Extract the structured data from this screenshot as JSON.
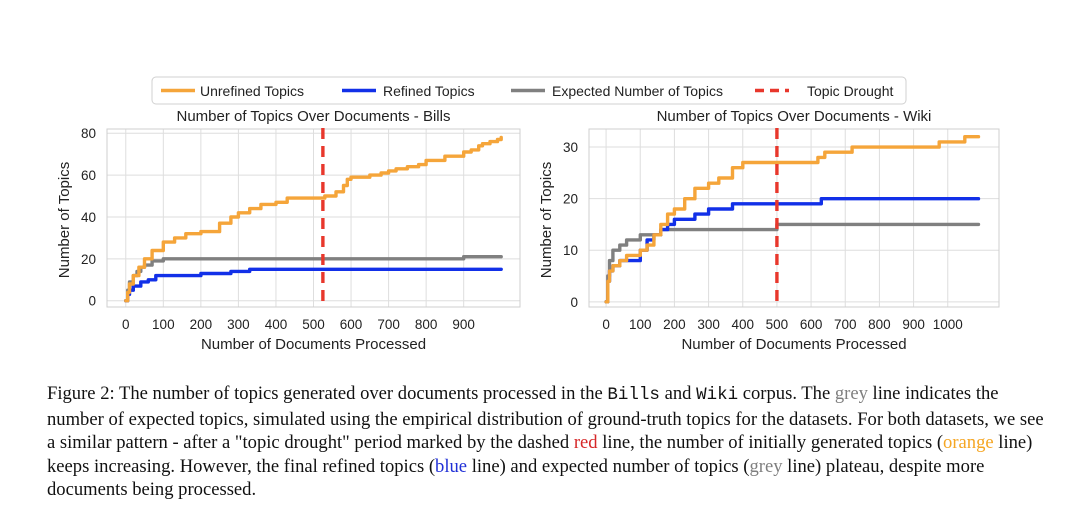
{
  "legend": {
    "items": [
      {
        "label": "Unrefined Topics",
        "color": "#f5a53a",
        "style": "solid"
      },
      {
        "label": "Refined Topics",
        "color": "#1230e8",
        "style": "solid"
      },
      {
        "label": "Expected Number of Topics",
        "color": "#808080",
        "style": "solid"
      },
      {
        "label": "Topic Drought",
        "color": "#e8372c",
        "style": "dashed"
      }
    ]
  },
  "chart_data": [
    {
      "type": "line",
      "title": "Number of Topics Over Documents - Bills",
      "xlabel": "Number of Documents Processed",
      "ylabel": "Number of Topics",
      "xlim": [
        -50,
        1050
      ],
      "ylim": [
        -3,
        82
      ],
      "xticks": [
        0,
        100,
        200,
        300,
        400,
        500,
        600,
        700,
        800,
        900
      ],
      "yticks": [
        0,
        20,
        40,
        60,
        80
      ],
      "grid": true,
      "vline": {
        "name": "Topic Drought",
        "x": 525
      },
      "series": [
        {
          "name": "Unrefined Topics",
          "x": [
            0,
            5,
            10,
            20,
            35,
            50,
            70,
            100,
            130,
            160,
            200,
            250,
            280,
            300,
            330,
            360,
            400,
            430,
            450,
            470,
            500,
            530,
            560,
            580,
            590,
            600,
            620,
            650,
            680,
            700,
            720,
            750,
            780,
            800,
            850,
            900,
            920,
            940,
            950,
            970,
            990,
            1000
          ],
          "values": [
            0,
            4,
            8,
            12,
            16,
            20,
            24,
            28,
            30,
            32,
            33,
            37,
            40,
            42,
            44,
            46,
            47,
            49,
            49,
            49,
            49,
            50,
            52,
            55,
            58,
            59,
            59,
            60,
            61,
            62,
            63,
            64,
            65,
            67,
            69,
            71,
            72,
            74,
            75,
            76,
            77,
            78
          ]
        },
        {
          "name": "Refined Topics",
          "x": [
            0,
            5,
            10,
            20,
            40,
            60,
            80,
            100,
            140,
            200,
            230,
            280,
            330,
            400,
            500,
            600,
            700,
            800,
            900,
            1000
          ],
          "values": [
            0,
            3,
            5,
            7,
            9,
            10,
            12,
            12,
            12,
            13,
            13,
            14,
            15,
            15,
            15,
            15,
            15,
            15,
            15,
            15
          ]
        },
        {
          "name": "Expected Number of Topics",
          "x": [
            0,
            5,
            10,
            20,
            30,
            40,
            50,
            70,
            100,
            150,
            200,
            300,
            400,
            500,
            600,
            700,
            800,
            900,
            1000
          ],
          "values": [
            0,
            5,
            9,
            12,
            14,
            16,
            17,
            19,
            20,
            20,
            20,
            20,
            20,
            20,
            20,
            20,
            20,
            21,
            21
          ]
        }
      ]
    },
    {
      "type": "line",
      "title": "Number of Topics Over Documents - Wiki",
      "xlabel": "Number of Documents Processed",
      "ylabel": "Number of Topics",
      "xlim": [
        -50,
        1150
      ],
      "ylim": [
        -1,
        33.5
      ],
      "xticks": [
        0,
        100,
        200,
        300,
        400,
        500,
        600,
        700,
        800,
        900,
        1000
      ],
      "yticks": [
        0,
        10,
        20,
        30
      ],
      "grid": true,
      "vline": {
        "name": "Topic Drought",
        "x": 500
      },
      "series": [
        {
          "name": "Unrefined Topics",
          "x": [
            0,
            5,
            10,
            20,
            40,
            60,
            80,
            100,
            120,
            140,
            160,
            180,
            200,
            230,
            260,
            300,
            330,
            370,
            400,
            450,
            500,
            550,
            600,
            620,
            640,
            700,
            720,
            800,
            950,
            975,
            1000,
            1050,
            1090
          ],
          "values": [
            0,
            4,
            6,
            7,
            8,
            9,
            9,
            10,
            11,
            13,
            15,
            17,
            18,
            20,
            22,
            23,
            24,
            26,
            27,
            27,
            27,
            27,
            27,
            28,
            29,
            29,
            30,
            30,
            30,
            31,
            31,
            32,
            32
          ]
        },
        {
          "name": "Refined Topics",
          "x": [
            0,
            5,
            10,
            20,
            40,
            60,
            80,
            100,
            120,
            140,
            160,
            180,
            200,
            230,
            260,
            300,
            330,
            370,
            400,
            450,
            500,
            550,
            600,
            630,
            650,
            700,
            800,
            900,
            1000,
            1090
          ],
          "values": [
            0,
            4,
            6,
            7,
            8,
            8,
            8,
            10,
            12,
            13,
            14,
            15,
            16,
            16,
            17,
            18,
            18,
            19,
            19,
            19,
            19,
            19,
            19,
            20,
            20,
            20,
            20,
            20,
            20,
            20
          ]
        },
        {
          "name": "Expected Number of Topics",
          "x": [
            0,
            5,
            10,
            20,
            40,
            60,
            80,
            100,
            120,
            140,
            160,
            200,
            300,
            400,
            500,
            600,
            700,
            800,
            900,
            1000,
            1090
          ],
          "values": [
            0,
            5,
            8,
            10,
            11,
            12,
            12,
            13,
            13,
            13,
            14,
            14,
            14,
            14,
            15,
            15,
            15,
            15,
            15,
            15,
            15
          ]
        }
      ]
    }
  ],
  "caption": {
    "t1": "Figure 2: The number of topics generated over documents processed in the ",
    "bills": "Bills",
    "t2": " and ",
    "wiki": "Wiki",
    "t3": " corpus. The ",
    "grey1": "grey",
    "t4": " line indicates the number of expected topics, simulated using the empirical distribution of ground-truth topics for the datasets. For both datasets, we see a similar pattern - after a \"topic drought\" period marked by the dashed ",
    "red": "red",
    "t5": " line, the number of initially generated topics (",
    "orange": "orange",
    "t6": " line) keeps increasing. However, the final refined topics (",
    "blue": "blue",
    "t7": " line) and expected number of topics (",
    "grey2": "grey",
    "t8": " line) plateau, despite more documents being processed."
  }
}
